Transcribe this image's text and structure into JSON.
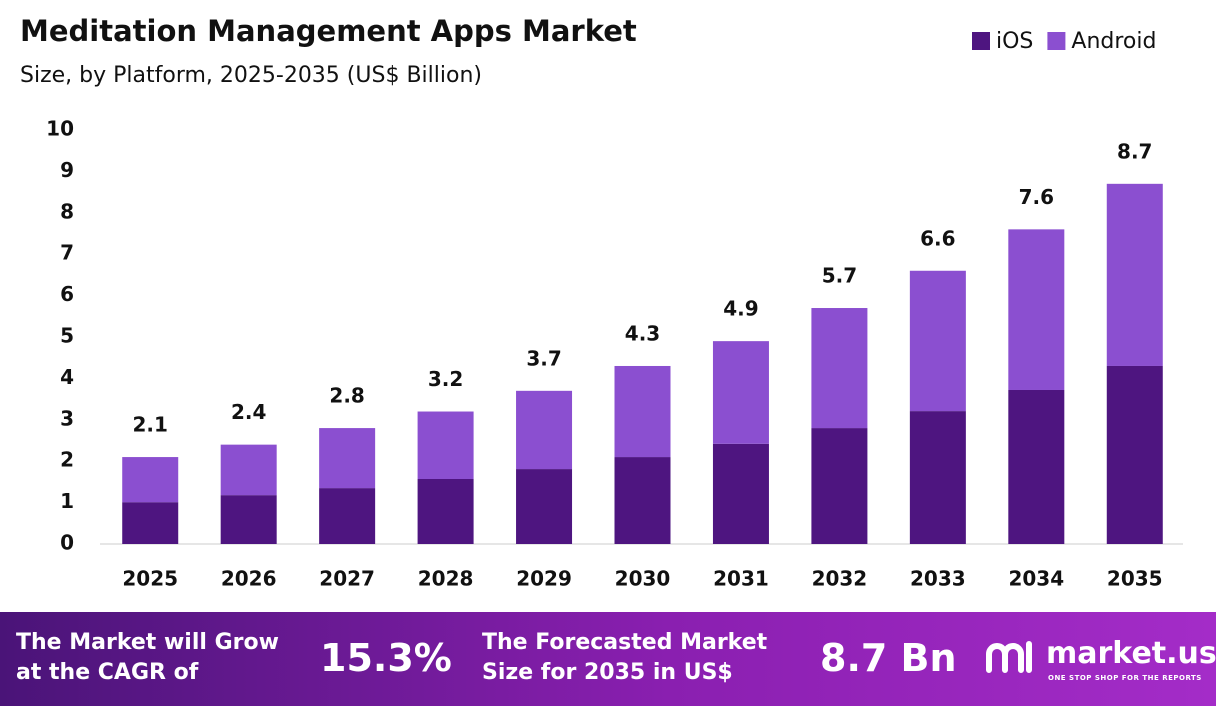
{
  "chart_data": {
    "type": "stacked-bar",
    "title": "Meditation Management Apps Market",
    "subtitle": "Size, by Platform, 2025-2035 (US$ Billion)",
    "categories": [
      "2025",
      "2026",
      "2027",
      "2028",
      "2029",
      "2030",
      "2031",
      "2032",
      "2033",
      "2034",
      "2035"
    ],
    "series": [
      {
        "name": "iOS",
        "color": "#4e1580",
        "values": [
          1.01,
          1.18,
          1.35,
          1.57,
          1.81,
          2.1,
          2.42,
          2.8,
          3.21,
          3.72,
          4.3
        ]
      },
      {
        "name": "Android",
        "color": "#8b4fd0",
        "values": [
          1.09,
          1.22,
          1.45,
          1.63,
          1.89,
          2.2,
          2.48,
          2.9,
          3.39,
          3.88,
          4.4
        ]
      }
    ],
    "totals": [
      2.1,
      2.4,
      2.8,
      3.2,
      3.7,
      4.3,
      4.9,
      5.7,
      6.6,
      7.6,
      8.7
    ],
    "ylim": [
      0,
      10
    ],
    "yticks": [
      0,
      1,
      2,
      3,
      4,
      5,
      6,
      7,
      8,
      9,
      10
    ],
    "grid": false,
    "legend": "top-right"
  },
  "footer": {
    "cagr_text": "The Market will Grow at the CAGR of",
    "cagr_value": "15.3%",
    "forecast_text": "The Forecasted Market Size for 2035 in US$",
    "forecast_value": "8.7 Bn",
    "brand": "market.us",
    "tagline": "ONE STOP SHOP FOR THE REPORTS"
  }
}
